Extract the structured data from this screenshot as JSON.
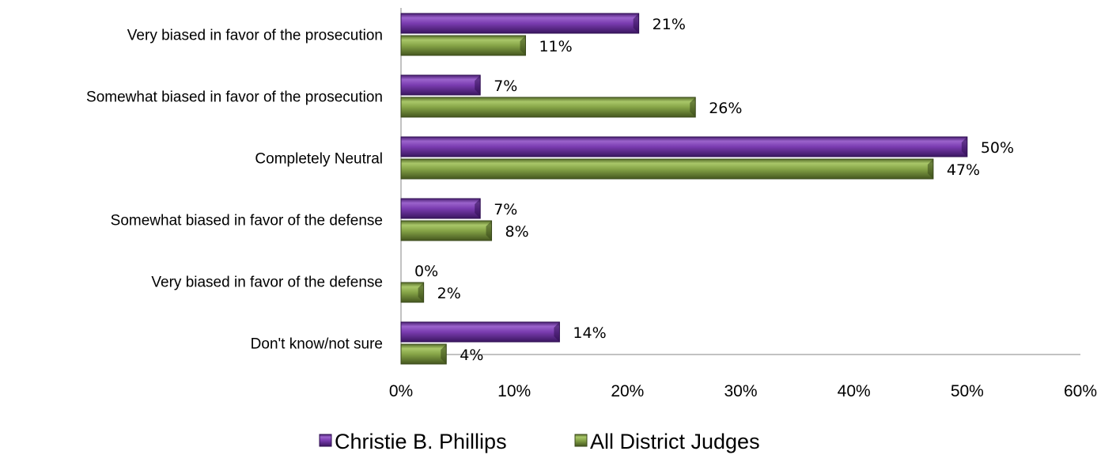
{
  "chart_data": {
    "type": "bar",
    "orientation": "horizontal",
    "categories": [
      "Very biased in favor of the prosecution",
      "Somewhat biased in favor of the prosecution",
      "Completely Neutral",
      "Somewhat biased in favor of the defense",
      "Very biased in favor of the defense",
      "Don't know/not sure"
    ],
    "series": [
      {
        "name": "Christie B. Phillips",
        "values": [
          21,
          7,
          50,
          7,
          0,
          14
        ],
        "labels": [
          "21%",
          "7%",
          "50%",
          "7%",
          "0%",
          "14%"
        ],
        "color": "#7030A0"
      },
      {
        "name": "All District Judges",
        "values": [
          11,
          26,
          47,
          8,
          2,
          4
        ],
        "labels": [
          "11%",
          "26%",
          "47%",
          "8%",
          "2%",
          "4%"
        ],
        "color": "#77933C"
      }
    ],
    "xlim": [
      0,
      60
    ],
    "xticks": [
      0,
      10,
      20,
      30,
      40,
      50,
      60
    ],
    "xtick_labels": [
      "0%",
      "10%",
      "20%",
      "30%",
      "40%",
      "50%",
      "60%"
    ],
    "grid": false,
    "legend_position": "bottom"
  }
}
